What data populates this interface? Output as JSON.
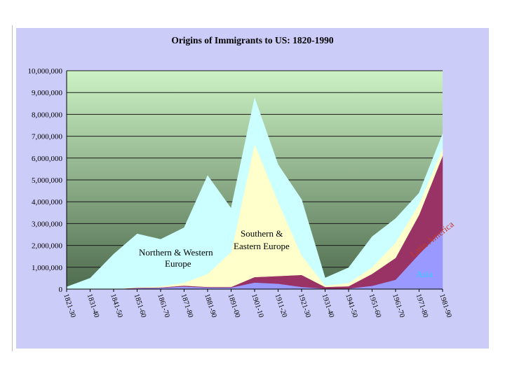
{
  "chart_data": {
    "type": "area",
    "stacked": true,
    "title": "Origins of Immigrants to US: 1820-1990",
    "xlabel": "",
    "ylabel": "",
    "ylim": [
      0,
      10000000
    ],
    "y_ticks": [
      "0",
      "1,000,000",
      "2,000,000",
      "3,000,000",
      "4,000,000",
      "5,000,000",
      "6,000,000",
      "7,000,000",
      "8,000,000",
      "9,000,000",
      "10,000,000"
    ],
    "grid": true,
    "categories": [
      "1821-30",
      "1831-40",
      "1841-50",
      "1851-60",
      "1861-70",
      "1871-80",
      "1881-90",
      "1891-00",
      "1901-10",
      "1911-20",
      "1921-30",
      "1931-40",
      "1941-50",
      "1951-60",
      "1961-70",
      "1971-80",
      "1981-90"
    ],
    "series": [
      {
        "name": "Asia",
        "values": [
          0,
          0,
          0,
          40000,
          65000,
          120000,
          70000,
          70000,
          300000,
          250000,
          100000,
          20000,
          30000,
          150000,
          430000,
          1600000,
          2700000
        ]
      },
      {
        "name": "Latin America",
        "values": [
          0,
          0,
          0,
          20000,
          15000,
          40000,
          30000,
          30000,
          250000,
          350000,
          550000,
          80000,
          100000,
          550000,
          1000000,
          1800000,
          3400000
        ]
      },
      {
        "name": "Southern & Eastern Europe",
        "values": [
          0,
          0,
          0,
          20000,
          50000,
          130000,
          600000,
          1600000,
          6100000,
          3400000,
          900000,
          60000,
          150000,
          300000,
          700000,
          500000,
          350000
        ]
      },
      {
        "name": "Northern & Western Europe",
        "values": [
          100000,
          500000,
          1600000,
          2450000,
          2150000,
          2520000,
          4500000,
          2000000,
          2100000,
          1700000,
          2550000,
          350000,
          700000,
          1400000,
          1100000,
          500000,
          650000
        ]
      }
    ],
    "annotations": [
      {
        "text": "Northern & Western Europe",
        "series": "Northern & Western Europe"
      },
      {
        "text": "Southern & Eastern Europe",
        "series": "Southern & Eastern Europe"
      },
      {
        "text": "Latin America",
        "series": "Latin America"
      },
      {
        "text": "Asia",
        "series": "Asia"
      }
    ],
    "colors": {
      "Asia": "#9999ff",
      "Latin America": "#993366",
      "Southern & Eastern Europe": "#ffffcc",
      "Northern & Western Europe": "#ccffff",
      "plot_top": "#ccf2c4",
      "plot_bottom": "#4e6b4e",
      "frame": "#ccccf8",
      "grid": "#1a1a1a",
      "latin_label": "#c0392b",
      "asia_label": "#33ccff"
    }
  }
}
